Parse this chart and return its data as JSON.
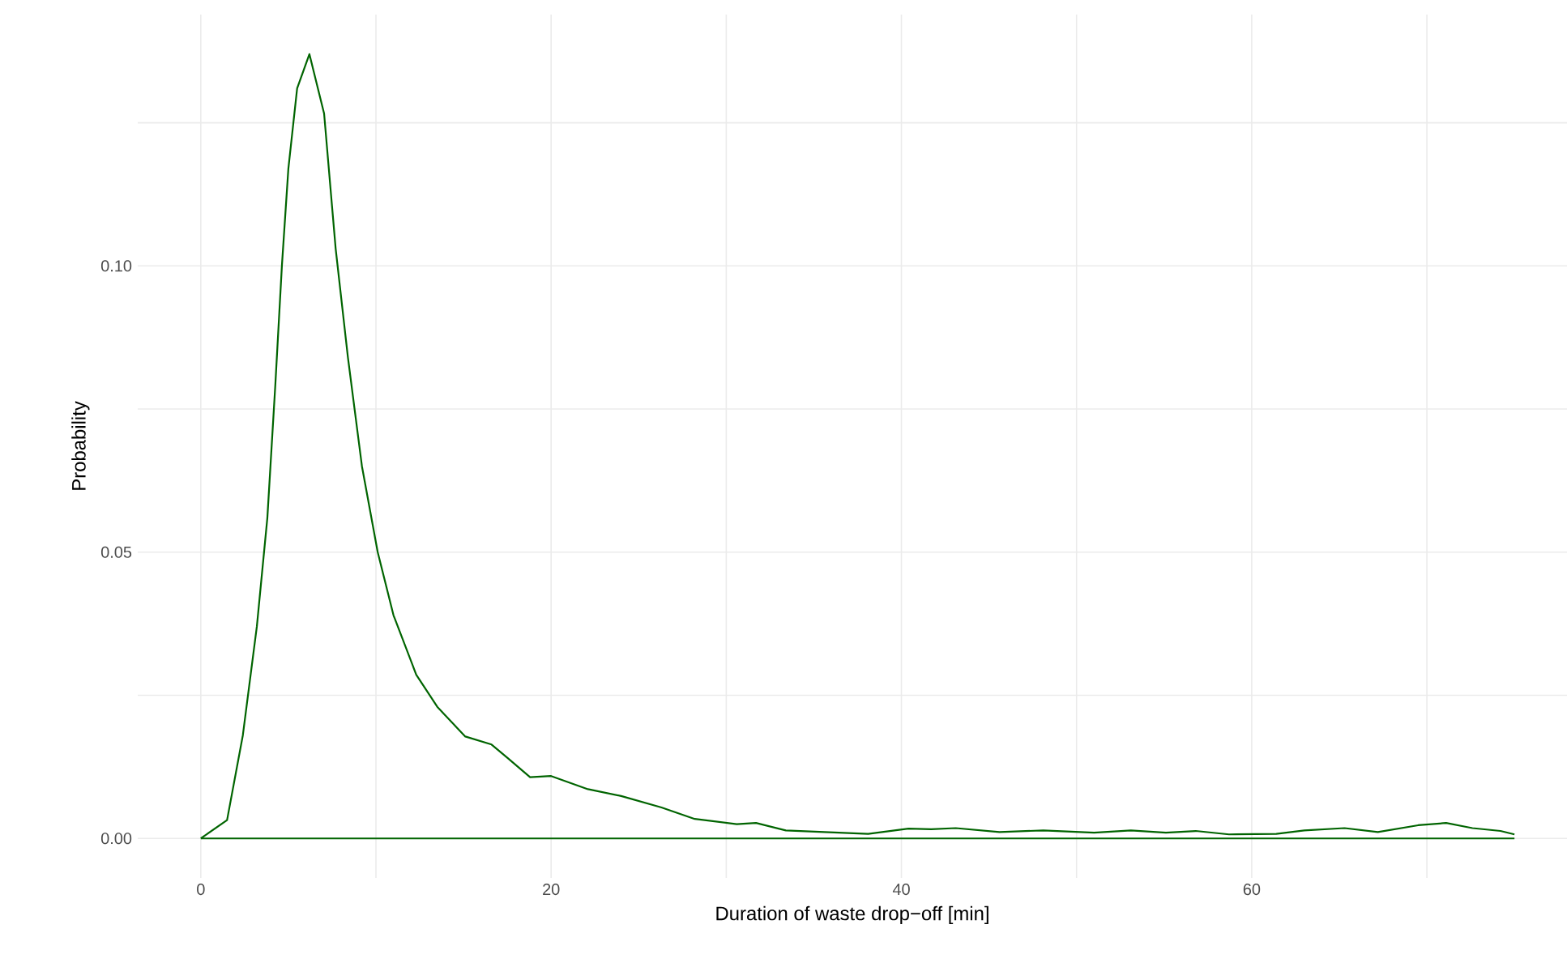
{
  "chart_data": {
    "type": "line",
    "xlabel": "Duration of waste drop−off [min]",
    "ylabel": "Probability",
    "x": [
      0,
      1.5,
      2.4,
      3.2,
      3.8,
      4.26,
      4.63,
      5.0,
      5.5,
      6.2,
      7.04,
      7.7,
      8.4,
      9.2,
      10.1,
      11.0,
      12.3,
      13.5,
      15.1,
      16.6,
      17.5,
      18.8,
      20.0,
      22.1,
      24.0,
      26.3,
      28.2,
      30.6,
      31.7,
      33.4,
      35.6,
      38.1,
      40.4,
      41.7,
      43.1,
      45.6,
      48.1,
      51.0,
      53.1,
      55.1,
      56.8,
      58.7,
      61.4,
      63.0,
      65.3,
      67.2,
      69.5,
      71.1,
      72.6,
      74.2,
      75.0
    ],
    "series": [
      {
        "color": "#006400",
        "values": [
          0,
          0.0032,
          0.018,
          0.037,
          0.056,
          0.0795,
          0.1,
          0.117,
          0.131,
          0.137,
          0.1266,
          0.103,
          0.084,
          0.065,
          0.05,
          0.039,
          0.0286,
          0.023,
          0.0178,
          0.0164,
          0.0141,
          0.0107,
          0.0109,
          0.0086,
          0.0074,
          0.0054,
          0.0034,
          0.0025,
          0.0027,
          0.0014,
          0.0011,
          0.0008,
          0.0017,
          0.0016,
          0.0018,
          0.0011,
          0.0014,
          0.001,
          0.0014,
          0.001,
          0.0013,
          0.0007,
          0.0008,
          0.0014,
          0.0018,
          0.0011,
          0.0023,
          0.0027,
          0.0018,
          0.0013,
          0.0007
        ]
      },
      {
        "color": "#006400",
        "x": [
          0,
          75
        ],
        "values": [
          0,
          0
        ]
      }
    ],
    "xlim": [
      -3.6,
      78
    ],
    "ylim": [
      -0.0069,
      0.1439
    ],
    "xticks": [
      0,
      {
        "value": 10,
        "label": null
      },
      20,
      {
        "value": 30,
        "label": null
      },
      40,
      {
        "value": 50,
        "label": null
      },
      60,
      {
        "value": 70,
        "label": null
      }
    ],
    "yticks": [
      {
        "value": 0,
        "label": "0.00"
      },
      {
        "value": 0.025,
        "label": null
      },
      {
        "value": 0.05,
        "label": "0.05"
      },
      {
        "value": 0.075,
        "label": null
      },
      {
        "value": 0.1,
        "label": "0.10"
      },
      {
        "value": 0.125,
        "label": null
      }
    ],
    "grid": true
  }
}
